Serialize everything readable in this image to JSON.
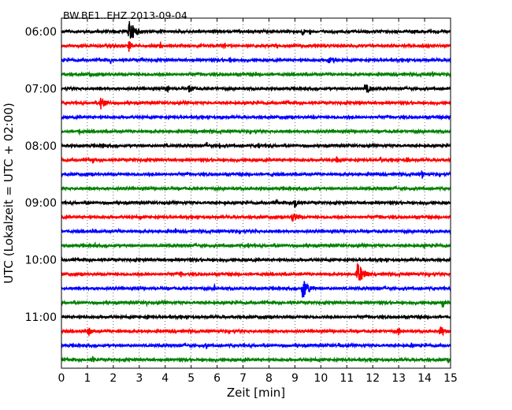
{
  "chart_data": {
    "type": "line",
    "title": "BW.BE1..EHZ 2013-09-04",
    "xlabel": "Zeit  [min]",
    "ylabel": "UTC (Lokalzeit = UTC + 02:00)",
    "xlim": [
      0,
      15
    ],
    "xticks": [
      0,
      1,
      2,
      3,
      4,
      5,
      6,
      7,
      8,
      9,
      10,
      11,
      12,
      13,
      14,
      15
    ],
    "grid": true,
    "grid_style": "dotted",
    "trace_interval_min": 15,
    "trace_colors": [
      "#000000",
      "#ff0000",
      "#0000ff",
      "#008000"
    ],
    "yticks": [
      {
        "label": "06:00",
        "row": 0
      },
      {
        "label": "07:00",
        "row": 4
      },
      {
        "label": "08:00",
        "row": 8
      },
      {
        "label": "09:00",
        "row": 12
      },
      {
        "label": "10:00",
        "row": 16
      },
      {
        "label": "11:00",
        "row": 20
      }
    ],
    "series": [
      {
        "start": "06:00",
        "color": "#000000",
        "events": [
          {
            "t": 2.6,
            "amp": 1.0,
            "dur": 0.8
          },
          {
            "t": 9.3,
            "amp": 0.5,
            "dur": 0.2
          },
          {
            "t": 9.6,
            "amp": 0.3,
            "dur": 0.15
          },
          {
            "t": 2.0,
            "amp": 0.2,
            "dur": 0.4
          },
          {
            "t": 5.8,
            "amp": 0.15,
            "dur": 0.3
          },
          {
            "t": 11.8,
            "amp": 0.15,
            "dur": 0.3
          }
        ]
      },
      {
        "start": "06:15",
        "color": "#ff0000",
        "events": [
          {
            "t": 2.6,
            "amp": 0.6,
            "dur": 0.3
          },
          {
            "t": 3.8,
            "amp": 0.3,
            "dur": 0.4
          },
          {
            "t": 6.3,
            "amp": 0.3,
            "dur": 0.15
          },
          {
            "t": 13.9,
            "amp": 0.3,
            "dur": 0.2
          },
          {
            "t": 10.5,
            "amp": 0.15,
            "dur": 0.4
          }
        ]
      },
      {
        "start": "06:30",
        "color": "#0000ff",
        "events": [
          {
            "t": 1.9,
            "amp": 0.35,
            "dur": 0.2
          },
          {
            "t": 3.1,
            "amp": 0.3,
            "dur": 0.2
          },
          {
            "t": 6.5,
            "amp": 0.3,
            "dur": 0.2
          },
          {
            "t": 10.3,
            "amp": 0.3,
            "dur": 1.2
          },
          {
            "t": 15.0,
            "amp": 0.35,
            "dur": 0.15
          },
          {
            "t": 14.0,
            "amp": 0.15,
            "dur": 0.4
          }
        ]
      },
      {
        "start": "06:45",
        "color": "#008000",
        "events": [
          {
            "t": 1.1,
            "amp": 0.25,
            "dur": 0.15
          },
          {
            "t": 7.5,
            "amp": 0.3,
            "dur": 0.15
          },
          {
            "t": 14.3,
            "amp": 0.3,
            "dur": 0.2
          },
          {
            "t": 4.0,
            "amp": 0.1,
            "dur": 0.5
          }
        ]
      },
      {
        "start": "07:00",
        "color": "#000000",
        "events": [
          {
            "t": 4.1,
            "amp": 0.35,
            "dur": 0.3
          },
          {
            "t": 4.9,
            "amp": 0.35,
            "dur": 0.8
          },
          {
            "t": 6.0,
            "amp": 0.2,
            "dur": 0.2
          },
          {
            "t": 11.7,
            "amp": 0.45,
            "dur": 0.8
          },
          {
            "t": 12.7,
            "amp": 0.25,
            "dur": 0.2
          },
          {
            "t": 14.2,
            "amp": 0.15,
            "dur": 0.2
          },
          {
            "t": 9.4,
            "amp": 0.15,
            "dur": 0.2
          }
        ]
      },
      {
        "start": "07:15",
        "color": "#ff0000",
        "events": [
          {
            "t": 1.5,
            "amp": 0.6,
            "dur": 0.7
          },
          {
            "t": 8.7,
            "amp": 0.2,
            "dur": 0.2
          },
          {
            "t": 11.5,
            "amp": 0.3,
            "dur": 0.15
          },
          {
            "t": 5.0,
            "amp": 0.1,
            "dur": 0.3
          }
        ]
      },
      {
        "start": "07:30",
        "color": "#0000ff",
        "events": [
          {
            "t": 6.2,
            "amp": 0.2,
            "dur": 0.2
          },
          {
            "t": 9.7,
            "amp": 0.2,
            "dur": 0.2
          },
          {
            "t": 11.0,
            "amp": 0.15,
            "dur": 0.3
          },
          {
            "t": 14.5,
            "amp": 0.15,
            "dur": 0.2
          }
        ]
      },
      {
        "start": "07:45",
        "color": "#008000",
        "events": [
          {
            "t": 0.7,
            "amp": 0.35,
            "dur": 0.15
          },
          {
            "t": 4.0,
            "amp": 0.1,
            "dur": 0.3
          },
          {
            "t": 10.0,
            "amp": 0.1,
            "dur": 0.3
          }
        ]
      },
      {
        "start": "08:00",
        "color": "#000000",
        "events": [
          {
            "t": 1.6,
            "amp": 0.3,
            "dur": 0.15
          },
          {
            "t": 4.0,
            "amp": 0.3,
            "dur": 0.15
          },
          {
            "t": 5.6,
            "amp": 0.4,
            "dur": 0.15
          },
          {
            "t": 6.1,
            "amp": 0.3,
            "dur": 0.15
          },
          {
            "t": 7.6,
            "amp": 0.3,
            "dur": 0.15
          },
          {
            "t": 8.0,
            "amp": 0.2,
            "dur": 0.15
          },
          {
            "t": 10.0,
            "amp": 0.15,
            "dur": 0.3
          },
          {
            "t": 12.0,
            "amp": 0.15,
            "dur": 0.2
          }
        ]
      },
      {
        "start": "08:15",
        "color": "#ff0000",
        "events": [
          {
            "t": 1.2,
            "amp": 0.35,
            "dur": 0.2
          },
          {
            "t": 2.8,
            "amp": 0.2,
            "dur": 0.2
          },
          {
            "t": 4.0,
            "amp": 0.15,
            "dur": 0.4
          },
          {
            "t": 10.6,
            "amp": 0.35,
            "dur": 0.3
          },
          {
            "t": 12.3,
            "amp": 0.3,
            "dur": 0.2
          },
          {
            "t": 13.3,
            "amp": 0.3,
            "dur": 0.3
          },
          {
            "t": 8.0,
            "amp": 0.1,
            "dur": 0.4
          }
        ]
      },
      {
        "start": "08:30",
        "color": "#0000ff",
        "events": [
          {
            "t": 8.1,
            "amp": 0.3,
            "dur": 0.15
          },
          {
            "t": 13.9,
            "amp": 0.45,
            "dur": 0.2
          },
          {
            "t": 2.0,
            "amp": 0.1,
            "dur": 0.3
          },
          {
            "t": 11.0,
            "amp": 0.1,
            "dur": 0.4
          }
        ]
      },
      {
        "start": "08:45",
        "color": "#008000",
        "events": [
          {
            "t": 1.2,
            "amp": 0.2,
            "dur": 0.15
          },
          {
            "t": 4.0,
            "amp": 0.2,
            "dur": 0.15
          },
          {
            "t": 12.5,
            "amp": 0.2,
            "dur": 0.2
          },
          {
            "t": 8.0,
            "amp": 0.1,
            "dur": 0.3
          }
        ]
      },
      {
        "start": "09:00",
        "color": "#000000",
        "events": [
          {
            "t": 1.0,
            "amp": 0.2,
            "dur": 0.15
          },
          {
            "t": 6.3,
            "amp": 0.2,
            "dur": 0.2
          },
          {
            "t": 8.3,
            "amp": 0.3,
            "dur": 0.2
          },
          {
            "t": 9.0,
            "amp": 0.7,
            "dur": 0.3
          },
          {
            "t": 12.0,
            "amp": 0.2,
            "dur": 0.15
          },
          {
            "t": 13.5,
            "amp": 0.15,
            "dur": 0.15
          }
        ]
      },
      {
        "start": "09:15",
        "color": "#ff0000",
        "events": [
          {
            "t": 3.0,
            "amp": 0.2,
            "dur": 0.4
          },
          {
            "t": 8.9,
            "amp": 0.45,
            "dur": 0.8
          },
          {
            "t": 12.3,
            "amp": 0.2,
            "dur": 0.3
          },
          {
            "t": 10.5,
            "amp": 0.15,
            "dur": 0.3
          }
        ]
      },
      {
        "start": "09:30",
        "color": "#0000ff",
        "events": [
          {
            "t": 1.2,
            "amp": 0.2,
            "dur": 0.15
          },
          {
            "t": 2.2,
            "amp": 0.25,
            "dur": 0.15
          },
          {
            "t": 4.4,
            "amp": 0.3,
            "dur": 0.15
          },
          {
            "t": 6.6,
            "amp": 0.25,
            "dur": 0.15
          },
          {
            "t": 7.5,
            "amp": 0.15,
            "dur": 0.3
          },
          {
            "t": 10.7,
            "amp": 0.2,
            "dur": 0.15
          },
          {
            "t": 12.2,
            "amp": 0.15,
            "dur": 0.2
          },
          {
            "t": 14.1,
            "amp": 0.15,
            "dur": 0.3
          }
        ]
      },
      {
        "start": "09:45",
        "color": "#008000",
        "events": [
          {
            "t": 1.3,
            "amp": 0.2,
            "dur": 0.15
          },
          {
            "t": 4.0,
            "amp": 0.15,
            "dur": 0.3
          },
          {
            "t": 7.2,
            "amp": 0.25,
            "dur": 0.15
          },
          {
            "t": 14.0,
            "amp": 0.2,
            "dur": 0.15
          },
          {
            "t": 10.0,
            "amp": 0.1,
            "dur": 0.3
          }
        ]
      },
      {
        "start": "10:00",
        "color": "#000000",
        "events": [
          {
            "t": 3.8,
            "amp": 0.15,
            "dur": 0.3
          },
          {
            "t": 8.7,
            "amp": 0.15,
            "dur": 0.3
          },
          {
            "t": 12.5,
            "amp": 0.15,
            "dur": 0.3
          }
        ]
      },
      {
        "start": "10:15",
        "color": "#ff0000",
        "events": [
          {
            "t": 4.6,
            "amp": 0.35,
            "dur": 0.15
          },
          {
            "t": 11.4,
            "amp": 1.0,
            "dur": 0.8
          },
          {
            "t": 9.2,
            "amp": 0.2,
            "dur": 0.15
          },
          {
            "t": 12.5,
            "amp": 0.15,
            "dur": 0.3
          }
        ]
      },
      {
        "start": "10:30",
        "color": "#0000ff",
        "events": [
          {
            "t": 5.9,
            "amp": 0.3,
            "dur": 0.15
          },
          {
            "t": 9.3,
            "amp": 1.0,
            "dur": 0.7
          },
          {
            "t": 12.2,
            "amp": 0.3,
            "dur": 0.15
          },
          {
            "t": 1.5,
            "amp": 0.1,
            "dur": 0.3
          }
        ]
      },
      {
        "start": "10:45",
        "color": "#008000",
        "events": [
          {
            "t": 3.3,
            "amp": 0.3,
            "dur": 0.15
          },
          {
            "t": 4.0,
            "amp": 0.2,
            "dur": 0.15
          },
          {
            "t": 8.8,
            "amp": 0.2,
            "dur": 0.15
          },
          {
            "t": 9.5,
            "amp": 0.2,
            "dur": 0.2
          },
          {
            "t": 14.7,
            "amp": 0.5,
            "dur": 0.2
          },
          {
            "t": 12.0,
            "amp": 0.1,
            "dur": 0.3
          }
        ]
      },
      {
        "start": "11:00",
        "color": "#000000",
        "events": [
          {
            "t": 2.2,
            "amp": 0.15,
            "dur": 0.15
          },
          {
            "t": 3.3,
            "amp": 0.4,
            "dur": 0.15
          },
          {
            "t": 6.4,
            "amp": 0.15,
            "dur": 0.3
          },
          {
            "t": 9.6,
            "amp": 0.15,
            "dur": 0.2
          },
          {
            "t": 13.0,
            "amp": 0.15,
            "dur": 0.2
          },
          {
            "t": 14.6,
            "amp": 0.2,
            "dur": 0.2
          }
        ]
      },
      {
        "start": "11:15",
        "color": "#ff0000",
        "events": [
          {
            "t": 1.0,
            "amp": 0.45,
            "dur": 0.6
          },
          {
            "t": 2.2,
            "amp": 0.2,
            "dur": 0.15
          },
          {
            "t": 8.1,
            "amp": 0.2,
            "dur": 0.15
          },
          {
            "t": 9.4,
            "amp": 0.2,
            "dur": 0.2
          },
          {
            "t": 13.0,
            "amp": 0.45,
            "dur": 0.2
          },
          {
            "t": 14.6,
            "amp": 0.6,
            "dur": 0.5
          }
        ]
      },
      {
        "start": "11:30",
        "color": "#0000ff",
        "events": [
          {
            "t": 4.6,
            "amp": 0.15,
            "dur": 0.2
          },
          {
            "t": 5.6,
            "amp": 0.3,
            "dur": 0.15
          },
          {
            "t": 10.7,
            "amp": 0.3,
            "dur": 0.15
          },
          {
            "t": 13.5,
            "amp": 0.3,
            "dur": 0.15
          },
          {
            "t": 8.0,
            "amp": 0.1,
            "dur": 0.3
          }
        ]
      },
      {
        "start": "11:45",
        "color": "#008000",
        "events": [
          {
            "t": 1.2,
            "amp": 0.35,
            "dur": 0.3
          },
          {
            "t": 2.1,
            "amp": 0.2,
            "dur": 0.3
          },
          {
            "t": 4.0,
            "amp": 0.15,
            "dur": 0.2
          },
          {
            "t": 9.5,
            "amp": 0.15,
            "dur": 0.3
          },
          {
            "t": 14.9,
            "amp": 0.35,
            "dur": 0.2
          }
        ]
      }
    ]
  }
}
